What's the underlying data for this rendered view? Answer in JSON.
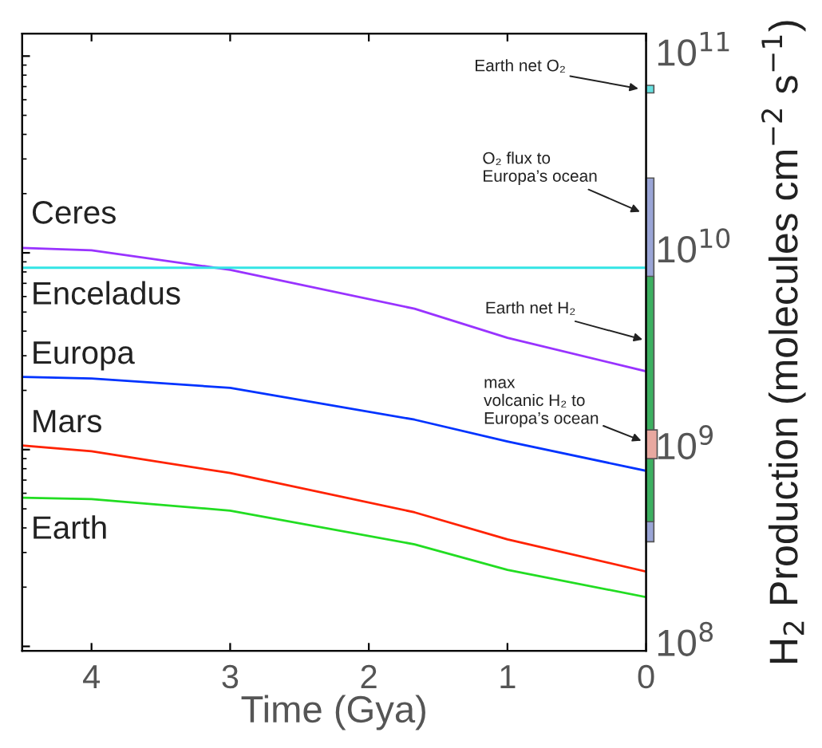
{
  "chart_data": {
    "type": "line",
    "xlabel": "Time (Gya)",
    "y2label": "H$_{2}$ Production (molecules cm$^{−2}$ s$^{−1}$)",
    "xlim": [
      4.5,
      0
    ],
    "xticks": [
      4,
      3,
      2,
      1,
      0
    ],
    "log": true,
    "ylim": [
      95000000,
      130000000000
    ],
    "yticks": [
      {
        "value": 100000000,
        "label": "10$^{8}$"
      },
      {
        "value": 1000000000,
        "label": "10$^{9}$"
      },
      {
        "value": 10000000000,
        "label": "10$^{10}$"
      },
      {
        "value": 100000000000,
        "label": "10$^{11}$"
      }
    ],
    "grid": false,
    "legend": false,
    "series": [
      {
        "name": "Ceres",
        "color": "#9933ff",
        "x": [
          4.5,
          4,
          3,
          1.67,
          1,
          0
        ],
        "values": [
          10600000000,
          10300000000,
          8200000000,
          5200000000,
          3700000000,
          2500000000
        ]
      },
      {
        "name": "Enceladus",
        "color": "#33e5e5",
        "x": [
          4.5,
          0
        ],
        "values": [
          8400000000,
          8400000000
        ]
      },
      {
        "name": "Europa",
        "color": "#0033ff",
        "x": [
          4.5,
          4,
          3,
          1.67,
          1,
          0
        ],
        "values": [
          2340000000,
          2300000000,
          2060000000,
          1420000000,
          1100000000,
          780000000
        ]
      },
      {
        "name": "Mars",
        "color": "#ff2200",
        "x": [
          4.5,
          4,
          3,
          1.67,
          1,
          0
        ],
        "values": [
          1050000000,
          980000000,
          760000000,
          480000000,
          350000000,
          240000000
        ]
      },
      {
        "name": "Earth",
        "color": "#22dd22",
        "x": [
          4.5,
          4,
          3,
          1.67,
          1,
          0
        ],
        "values": [
          570000000,
          560000000,
          490000000,
          330000000,
          245000000,
          178000000
        ]
      },
      {
        "type": "bar",
        "color": "#9aa5d6",
        "x": [
          0
        ],
        "base": [
          340000000
        ],
        "values": [
          23660000000
        ]
      },
      {
        "type": "bar",
        "color": "#3cb060",
        "x": [
          0
        ],
        "base": [
          430000000
        ],
        "values": [
          7170000000
        ]
      },
      {
        "type": "bar",
        "color": "#e8a8a0",
        "x": [
          0
        ],
        "base": [
          900000000
        ],
        "values": [
          360000000
        ]
      },
      {
        "type": "bar",
        "color": "#66e0e0",
        "x": [
          0
        ],
        "base": [
          65000000000
        ],
        "values": [
          6000000000
        ]
      }
    ],
    "annotations": [
      {
        "text": "Earth net O₂",
        "x": 0.04,
        "y": 68000000000
      },
      {
        "text": "O₂ flux to\nEuropa’s ocean",
        "x": 0.03,
        "y": 16000000000
      },
      {
        "text": "Earth net H₂",
        "x": 0.01,
        "y": 3600000000
      },
      {
        "text": "max\nvolcanic H₂ to\nEuropa’s ocean",
        "x": 0.02,
        "y": 1100000000
      }
    ]
  }
}
